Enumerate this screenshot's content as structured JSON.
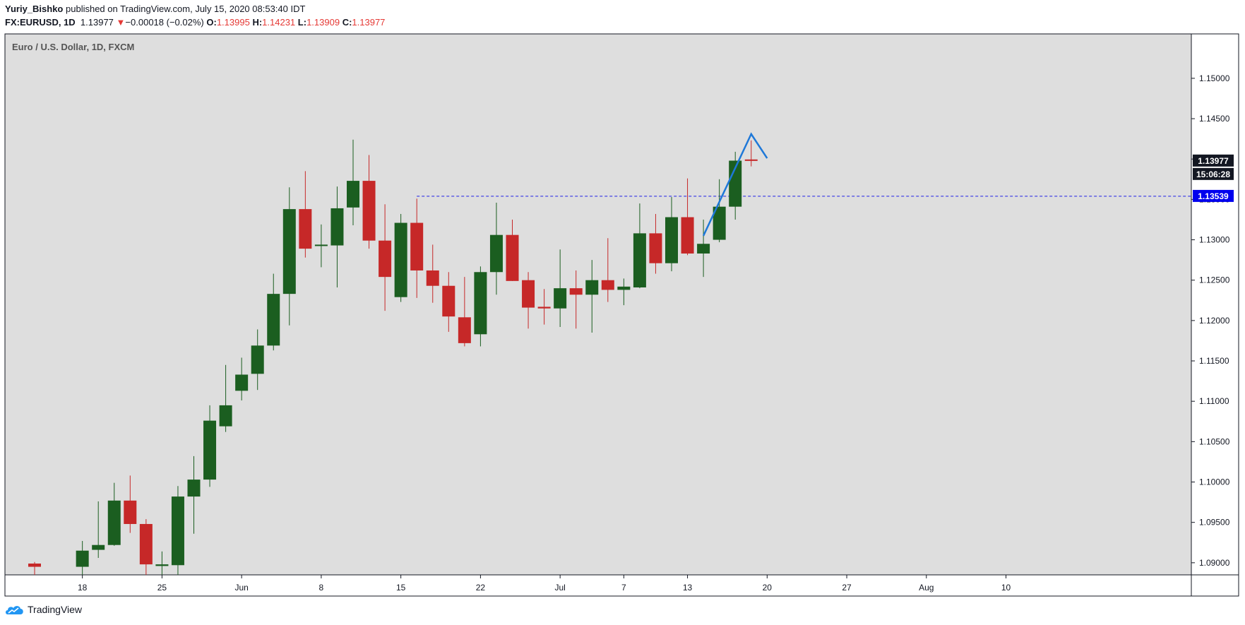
{
  "header": {
    "author": "Yuriy_Bishko",
    "published_text": "published on TradingView.com, July 15, 2020 08:53:40 IDT",
    "symbol": "FX:EURUSD, 1D",
    "last": "1.13977",
    "change": "−0.00018 (−0.02%)",
    "open_label": "O:",
    "open": "1.13995",
    "high_label": "H:",
    "high": "1.14231",
    "low_label": "L:",
    "low": "1.13909",
    "close_label": "C:",
    "close": "1.13977"
  },
  "chart_title": "Euro / U.S. Dollar, 1D, FXCM",
  "footer": {
    "brand": "TradingView"
  },
  "colors": {
    "up": "#1b5e20",
    "down": "#c62828",
    "bg": "#dedede",
    "hline": "#1e1ee6",
    "trend": "#1e78d8"
  },
  "chart_data": {
    "type": "candlestick",
    "title": "Euro / U.S. Dollar, 1D, FXCM",
    "ylim": [
      1.0885,
      1.1555
    ],
    "y_ticks": [
      {
        "value": 1.15,
        "label": "1.15000"
      },
      {
        "value": 1.145,
        "label": "1.14500"
      },
      {
        "value": 1.14,
        "label": "1.14000"
      },
      {
        "value": 1.135,
        "label": "1.13500"
      },
      {
        "value": 1.13,
        "label": "1.13000"
      },
      {
        "value": 1.125,
        "label": "1.12500"
      },
      {
        "value": 1.12,
        "label": "1.12000"
      },
      {
        "value": 1.115,
        "label": "1.11500"
      },
      {
        "value": 1.11,
        "label": "1.11000"
      },
      {
        "value": 1.105,
        "label": "1.10500"
      },
      {
        "value": 1.1,
        "label": "1.10000"
      },
      {
        "value": 1.095,
        "label": "1.09500"
      },
      {
        "value": 1.09,
        "label": "1.09000"
      }
    ],
    "x_ticks": [
      {
        "index": 3,
        "label": "18"
      },
      {
        "index": 8,
        "label": "25"
      },
      {
        "index": 13,
        "label": "Jun"
      },
      {
        "index": 18,
        "label": "8"
      },
      {
        "index": 23,
        "label": "15"
      },
      {
        "index": 28,
        "label": "22"
      },
      {
        "index": 33,
        "label": "Jul"
      },
      {
        "index": 37,
        "label": "7"
      },
      {
        "index": 41,
        "label": "13"
      },
      {
        "index": 46,
        "label": "20"
      },
      {
        "index": 51,
        "label": "27"
      },
      {
        "index": 56,
        "label": "Aug"
      },
      {
        "index": 61,
        "label": "10"
      }
    ],
    "candles": [
      {
        "i": 0,
        "o": 1.0899,
        "h": 1.0901,
        "l": 1.0885,
        "c": 1.0895
      },
      {
        "i": 3,
        "o": 1.0895,
        "h": 1.0927,
        "l": 1.0885,
        "c": 1.0915
      },
      {
        "i": 4,
        "o": 1.0916,
        "h": 1.0976,
        "l": 1.0906,
        "c": 1.0922
      },
      {
        "i": 5,
        "o": 1.0922,
        "h": 1.0999,
        "l": 1.0921,
        "c": 1.0977
      },
      {
        "i": 6,
        "o": 1.0977,
        "h": 1.1008,
        "l": 1.0937,
        "c": 1.0948
      },
      {
        "i": 7,
        "o": 1.0948,
        "h": 1.0954,
        "l": 1.0885,
        "c": 1.0898
      },
      {
        "i": 8,
        "o": 1.0896,
        "h": 1.0914,
        "l": 1.0885,
        "c": 1.0898
      },
      {
        "i": 9,
        "o": 1.0897,
        "h": 1.0995,
        "l": 1.0885,
        "c": 1.0982
      },
      {
        "i": 10,
        "o": 1.0982,
        "h": 1.1032,
        "l": 1.0936,
        "c": 1.1003
      },
      {
        "i": 11,
        "o": 1.1003,
        "h": 1.1095,
        "l": 1.0994,
        "c": 1.1076
      },
      {
        "i": 12,
        "o": 1.1069,
        "h": 1.1145,
        "l": 1.1062,
        "c": 1.1095
      },
      {
        "i": 13,
        "o": 1.1113,
        "h": 1.1154,
        "l": 1.1101,
        "c": 1.1133
      },
      {
        "i": 14,
        "o": 1.1134,
        "h": 1.1189,
        "l": 1.1114,
        "c": 1.1169
      },
      {
        "i": 15,
        "o": 1.1169,
        "h": 1.1258,
        "l": 1.1163,
        "c": 1.1233
      },
      {
        "i": 16,
        "o": 1.1233,
        "h": 1.1365,
        "l": 1.1194,
        "c": 1.1338
      },
      {
        "i": 17,
        "o": 1.1338,
        "h": 1.1385,
        "l": 1.1278,
        "c": 1.1289
      },
      {
        "i": 18,
        "o": 1.1293,
        "h": 1.1319,
        "l": 1.1266,
        "c": 1.1294
      },
      {
        "i": 19,
        "o": 1.1293,
        "h": 1.1366,
        "l": 1.1241,
        "c": 1.1339
      },
      {
        "i": 20,
        "o": 1.134,
        "h": 1.1424,
        "l": 1.1318,
        "c": 1.1373
      },
      {
        "i": 21,
        "o": 1.1373,
        "h": 1.1405,
        "l": 1.1289,
        "c": 1.1299
      },
      {
        "i": 22,
        "o": 1.1299,
        "h": 1.1344,
        "l": 1.1212,
        "c": 1.1254
      },
      {
        "i": 23,
        "o": 1.1229,
        "h": 1.1332,
        "l": 1.1223,
        "c": 1.1321
      },
      {
        "i": 24,
        "o": 1.1321,
        "h": 1.1351,
        "l": 1.1228,
        "c": 1.1262
      },
      {
        "i": 25,
        "o": 1.1262,
        "h": 1.1294,
        "l": 1.1222,
        "c": 1.1243
      },
      {
        "i": 26,
        "o": 1.1243,
        "h": 1.126,
        "l": 1.1186,
        "c": 1.1205
      },
      {
        "i": 27,
        "o": 1.1204,
        "h": 1.1254,
        "l": 1.1168,
        "c": 1.1172
      },
      {
        "i": 28,
        "o": 1.1183,
        "h": 1.1267,
        "l": 1.1168,
        "c": 1.126
      },
      {
        "i": 29,
        "o": 1.126,
        "h": 1.1346,
        "l": 1.1232,
        "c": 1.1306
      },
      {
        "i": 30,
        "o": 1.1306,
        "h": 1.1325,
        "l": 1.1249,
        "c": 1.1249
      },
      {
        "i": 31,
        "o": 1.125,
        "h": 1.126,
        "l": 1.119,
        "c": 1.1216
      },
      {
        "i": 32,
        "o": 1.1217,
        "h": 1.1239,
        "l": 1.1195,
        "c": 1.1215
      },
      {
        "i": 33,
        "o": 1.1215,
        "h": 1.1288,
        "l": 1.1192,
        "c": 1.124
      },
      {
        "i": 34,
        "o": 1.124,
        "h": 1.1262,
        "l": 1.119,
        "c": 1.1232
      },
      {
        "i": 35,
        "o": 1.1232,
        "h": 1.1275,
        "l": 1.1185,
        "c": 1.125
      },
      {
        "i": 36,
        "o": 1.125,
        "h": 1.1302,
        "l": 1.1223,
        "c": 1.1238
      },
      {
        "i": 37,
        "o": 1.1238,
        "h": 1.1252,
        "l": 1.1219,
        "c": 1.1242
      },
      {
        "i": 38,
        "o": 1.1241,
        "h": 1.1345,
        "l": 1.124,
        "c": 1.1308
      },
      {
        "i": 39,
        "o": 1.1308,
        "h": 1.1332,
        "l": 1.1258,
        "c": 1.1271
      },
      {
        "i": 40,
        "o": 1.1271,
        "h": 1.1353,
        "l": 1.1261,
        "c": 1.1328
      },
      {
        "i": 41,
        "o": 1.1328,
        "h": 1.1376,
        "l": 1.1281,
        "c": 1.1283
      },
      {
        "i": 42,
        "o": 1.1283,
        "h": 1.1325,
        "l": 1.1254,
        "c": 1.1295
      },
      {
        "i": 43,
        "o": 1.13,
        "h": 1.1375,
        "l": 1.1297,
        "c": 1.1341
      },
      {
        "i": 44,
        "o": 1.1341,
        "h": 1.1409,
        "l": 1.1325,
        "c": 1.1398
      },
      {
        "i": 45,
        "o": 1.13995,
        "h": 1.14231,
        "l": 1.13909,
        "c": 1.13977
      }
    ],
    "hline": {
      "value": 1.13539,
      "label": "1.13539",
      "start_index": 24
    },
    "last_price_label": "1.13977",
    "countdown_label": "15:06:28",
    "trendline": [
      {
        "i": 42,
        "y": 1.1305
      },
      {
        "i": 45,
        "y": 1.1431
      },
      {
        "i": 46,
        "y": 1.1401
      }
    ]
  }
}
